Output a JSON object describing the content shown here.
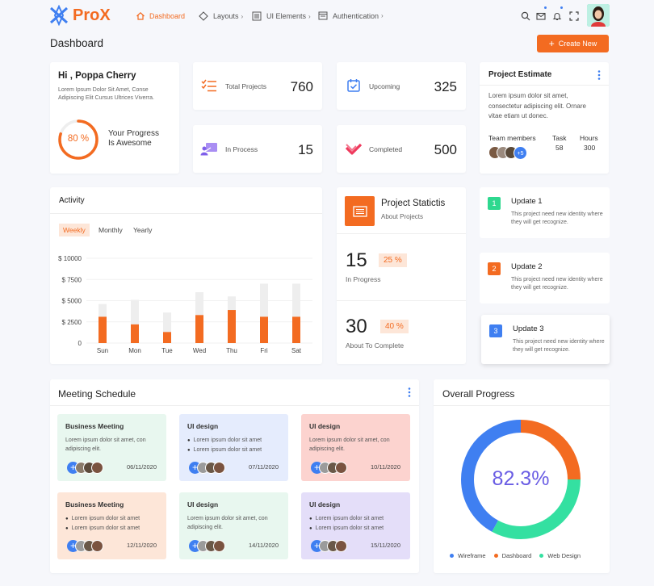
{
  "brand": {
    "name": "ProX"
  },
  "nav": {
    "dashboard": "Dashboard",
    "layouts": "Layouts",
    "ui_elements": "UI Elements",
    "authentication": "Authentication"
  },
  "page": {
    "title": "Dashboard",
    "create_button": "Create New"
  },
  "greeting": {
    "title": "Hi , Poppa Cherry",
    "text": "Lorem Ipsum Dolor Sit Amet, Conse Adipiscing Elit Cursus Ultrices Viverra.",
    "percent": "80 %",
    "progress_value": 80,
    "progress_label_1": "Your Progress",
    "progress_label_2": "Is Awesome"
  },
  "stats": [
    {
      "label": "Total Projects",
      "value": "760"
    },
    {
      "label": "Upcoming",
      "value": "325"
    },
    {
      "label": "In Process",
      "value": "15"
    },
    {
      "label": "Completed",
      "value": "500"
    }
  ],
  "estimate": {
    "title": "Project Estimate",
    "text": "Lorem ipsum dolor sit amet, consectetur adipiscing elit. Ornare vitae etiam ut donec.",
    "team_label": "Team members",
    "more": "+5",
    "task_label": "Task",
    "task_value": "58",
    "hours_label": "Hours",
    "hours_value": "300"
  },
  "activity": {
    "title": "Activity",
    "tabs": [
      "Weekly",
      "Monthly",
      "Yearly"
    ]
  },
  "chart_data": {
    "type": "bar",
    "categories": [
      "Sun",
      "Mon",
      "Tue",
      "Wed",
      "Thu",
      "Fri",
      "Sat"
    ],
    "yticks": [
      "$ 10000",
      "$ 7500",
      "$ 5000",
      "$ 2500",
      "0"
    ],
    "ylim": [
      0,
      10000
    ],
    "series": [
      {
        "values": [
          3100,
          2200,
          1300,
          3300,
          3900,
          3100,
          3100
        ],
        "color": "#f36b21"
      },
      {
        "values": [
          4600,
          5100,
          3600,
          6000,
          5500,
          7000,
          7000
        ],
        "color": "#eeeeee"
      }
    ]
  },
  "statistic": {
    "title": "Project Statictis",
    "subtitle": "About Projects",
    "num1": "15",
    "pct1": "25 %",
    "label1": "In Progress",
    "num2": "30",
    "pct2": "40 %",
    "label2": "About To Complete"
  },
  "updates": [
    {
      "num": "1",
      "title": "Update 1",
      "text": "This project need new identity where they will get recognize.",
      "color": "#2ed88f"
    },
    {
      "num": "2",
      "title": "Update 2",
      "text": "This project need new identity where they will get recognize.",
      "color": "#f36b21"
    },
    {
      "num": "3",
      "title": "Update 3",
      "text": "This project need new identity where they will get recognize.",
      "color": "#3f7ff1"
    }
  ],
  "meetings": {
    "title": "Meeting Schedule",
    "items": [
      {
        "title": "Business Meeting",
        "text": "Lorem ipsum dolor sit amet, con adipiscing elit.",
        "date": "06/11/2020"
      },
      {
        "title": "UI design",
        "bullets": [
          "Lorem ipsum dolor sit amet",
          "Lorem ipsum dolor sit amet"
        ],
        "date": "07/11/2020"
      },
      {
        "title": "UI design",
        "text": "Lorem ipsum dolor sit amet, con adipiscing elit.",
        "date": "10/11/2020"
      },
      {
        "title": "Business Meeting",
        "bullets": [
          "Lorem ipsum dolor sit amet",
          "Lorem ipsum dolor sit amet"
        ],
        "date": "12/11/2020"
      },
      {
        "title": "UI design",
        "text": "Lorem ipsum dolor sit amet, con adipiscing elit.",
        "date": "14/11/2020"
      },
      {
        "title": "UI design",
        "bullets": [
          "Lorem ipsum dolor sit amet",
          "Lorem ipsum dolor sit amet"
        ],
        "date": "15/11/2020"
      }
    ]
  },
  "overall": {
    "title": "Overall Progress",
    "value": "82.3%",
    "donut": [
      {
        "name": "Wireframe",
        "share": 0.42,
        "color": "#3f7ff1"
      },
      {
        "name": "Dashboard",
        "share": 0.25,
        "color": "#f36b21"
      },
      {
        "name": "Web Design",
        "share": 0.33,
        "color": "#34e0a1"
      }
    ]
  }
}
